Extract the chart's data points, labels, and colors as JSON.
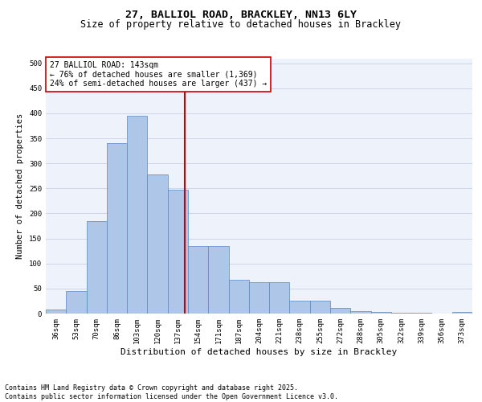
{
  "title1": "27, BALLIOL ROAD, BRACKLEY, NN13 6LY",
  "title2": "Size of property relative to detached houses in Brackley",
  "xlabel": "Distribution of detached houses by size in Brackley",
  "ylabel": "Number of detached properties",
  "categories": [
    "36sqm",
    "53sqm",
    "70sqm",
    "86sqm",
    "103sqm",
    "120sqm",
    "137sqm",
    "154sqm",
    "171sqm",
    "187sqm",
    "204sqm",
    "221sqm",
    "238sqm",
    "255sqm",
    "272sqm",
    "288sqm",
    "305sqm",
    "322sqm",
    "339sqm",
    "356sqm",
    "373sqm"
  ],
  "values": [
    8,
    45,
    185,
    340,
    395,
    278,
    247,
    135,
    135,
    68,
    62,
    62,
    25,
    25,
    11,
    5,
    4,
    2,
    1,
    0,
    3
  ],
  "bar_color": "#aec6e8",
  "bar_edge_color": "#5588bb",
  "vline_color": "#cc0000",
  "annotation_text": "27 BALLIOL ROAD: 143sqm\n← 76% of detached houses are smaller (1,369)\n24% of semi-detached houses are larger (437) →",
  "annotation_box_color": "#ffffff",
  "annotation_box_edge": "#cc0000",
  "ylim": [
    0,
    510
  ],
  "yticks": [
    0,
    50,
    100,
    150,
    200,
    250,
    300,
    350,
    400,
    450,
    500
  ],
  "footer": "Contains HM Land Registry data © Crown copyright and database right 2025.\nContains public sector information licensed under the Open Government Licence v3.0.",
  "bg_color": "#eef2fa",
  "grid_color": "#c8d0e0",
  "title1_fontsize": 9.5,
  "title2_fontsize": 8.5,
  "xlabel_fontsize": 8,
  "ylabel_fontsize": 7.5,
  "tick_fontsize": 6.5,
  "annotation_fontsize": 7,
  "footer_fontsize": 6
}
